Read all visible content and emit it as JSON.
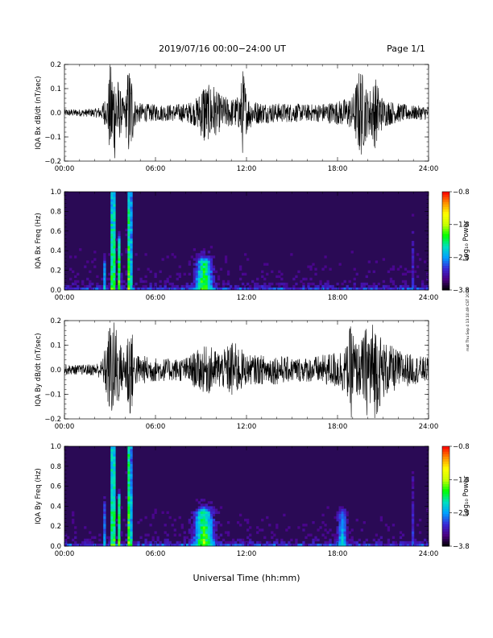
{
  "header": {
    "title": "2019/07/16  00:00−24:00 UT",
    "page": "Page 1/1"
  },
  "footer": {
    "xlabel": "Universal Time (hh:mm)",
    "side_note": "mat Thu Sep 4 13:10:49 CST 2019"
  },
  "colors": {
    "trace": "#000000",
    "spectrogram_background": "#2a0a55",
    "colormap": [
      "#000000",
      "#4b0082",
      "#3a2ad8",
      "#00a0ff",
      "#00e0c0",
      "#00ff00",
      "#c8ff00",
      "#ffff00",
      "#ff9000",
      "#ff0000"
    ]
  },
  "chart_data": [
    {
      "type": "line",
      "ylabel": "IQA Bx dB/dt (nT/sec)",
      "xlim": [
        0,
        24
      ],
      "ylim": [
        -0.2,
        0.2
      ],
      "xticks": [
        0,
        6,
        12,
        18,
        24
      ],
      "xtick_labels": [
        "00:00",
        "06:00",
        "12:00",
        "18:00",
        "24:00"
      ],
      "yticks": [
        -0.2,
        -0.1,
        0.0,
        0.1,
        0.2
      ],
      "ytick_labels": [
        "−0.2",
        "−0.1",
        "0.0",
        "0.1",
        "0.2"
      ],
      "series": [
        {
          "x": [
            0,
            1,
            2,
            2.5,
            2.6,
            2.75,
            3.0,
            3.2,
            3.4,
            3.6,
            3.8,
            4.0,
            4.2,
            4.4,
            4.6,
            5.0,
            6.0,
            7.0,
            8.0,
            8.5,
            8.8,
            9.0,
            9.2,
            9.4,
            9.6,
            9.8,
            10.0,
            10.5,
            11.0,
            11.5,
            11.8,
            12.0,
            12.5,
            13.0,
            14.0,
            15.0,
            16.0,
            17.0,
            18.0,
            19.0,
            19.5,
            20.0,
            20.5,
            21.0,
            22.0,
            23.0,
            24.0
          ],
          "envelope": [
            0.015,
            0.015,
            0.018,
            0.03,
            0.08,
            0.03,
            0.2,
            0.2,
            0.2,
            0.12,
            0.07,
            0.05,
            0.2,
            0.2,
            0.06,
            0.04,
            0.035,
            0.035,
            0.04,
            0.05,
            0.07,
            0.1,
            0.15,
            0.11,
            0.12,
            0.13,
            0.09,
            0.07,
            0.06,
            0.07,
            0.2,
            0.08,
            0.05,
            0.045,
            0.04,
            0.04,
            0.035,
            0.04,
            0.05,
            0.07,
            0.2,
            0.09,
            0.15,
            0.06,
            0.04,
            0.03,
            0.03
          ]
        }
      ]
    },
    {
      "type": "heatmap",
      "ylabel": "IQA Bx Freq (Hz)",
      "xlim": [
        0,
        24
      ],
      "ylim": [
        0,
        1.0
      ],
      "xticks": [
        0,
        6,
        12,
        18,
        24
      ],
      "xtick_labels": [
        "00:00",
        "06:00",
        "12:00",
        "18:00",
        "24:00"
      ],
      "yticks": [
        0.0,
        0.2,
        0.4,
        0.6,
        0.8,
        1.0
      ],
      "ytick_labels": [
        "0.0",
        "0.2",
        "0.4",
        "0.6",
        "0.8",
        "1.0"
      ],
      "colorbar": {
        "label": "Log₁₀ Power",
        "range": [
          -3.8,
          -0.8
        ],
        "ticks": [
          -3.8,
          -2.8,
          -1.8,
          -0.8
        ],
        "tick_labels": [
          "−3.8",
          "−2.8",
          "−1.8",
          "−0.8"
        ]
      },
      "features": [
        {
          "t": 2.6,
          "width": 0.06,
          "fmax": 0.3,
          "power": -2.0
        },
        {
          "t": 3.2,
          "width": 0.12,
          "fmax": 1.0,
          "power": -1.2
        },
        {
          "t": 3.6,
          "width": 0.1,
          "fmax": 0.5,
          "power": -1.8
        },
        {
          "t": 4.3,
          "width": 0.12,
          "fmax": 1.0,
          "power": -1.3
        },
        {
          "t": 9.2,
          "width": 0.5,
          "fmax": 0.3,
          "power": -1.7
        },
        {
          "t": 23.0,
          "width": 0.05,
          "fmax": 0.8,
          "power": -2.6
        }
      ]
    },
    {
      "type": "line",
      "ylabel": "IQA By dB/dt (nT/sec)",
      "xlim": [
        0,
        24
      ],
      "ylim": [
        -0.2,
        0.2
      ],
      "xticks": [
        0,
        6,
        12,
        18,
        24
      ],
      "xtick_labels": [
        "00:00",
        "06:00",
        "12:00",
        "18:00",
        "24:00"
      ],
      "yticks": [
        -0.2,
        -0.1,
        0.0,
        0.1,
        0.2
      ],
      "ytick_labels": [
        "−0.2",
        "−0.1",
        "0.0",
        "0.1",
        "0.2"
      ],
      "series": [
        {
          "x": [
            0,
            1,
            2,
            2.5,
            2.7,
            3.0,
            3.2,
            3.4,
            3.6,
            3.8,
            4.0,
            4.2,
            4.4,
            4.6,
            5.0,
            6.0,
            7.0,
            8.0,
            8.5,
            9.0,
            9.5,
            10.0,
            10.5,
            11.0,
            11.5,
            12.0,
            13.0,
            14.0,
            15.0,
            16.0,
            17.0,
            17.5,
            18.0,
            18.3,
            18.6,
            18.9,
            19.2,
            19.5,
            20.0,
            20.5,
            21.0,
            22.0,
            23.0,
            24.0
          ],
          "envelope": [
            0.02,
            0.02,
            0.025,
            0.04,
            0.1,
            0.2,
            0.2,
            0.2,
            0.13,
            0.09,
            0.08,
            0.2,
            0.2,
            0.07,
            0.06,
            0.05,
            0.045,
            0.05,
            0.07,
            0.09,
            0.1,
            0.08,
            0.08,
            0.12,
            0.1,
            0.06,
            0.06,
            0.06,
            0.05,
            0.05,
            0.06,
            0.07,
            0.08,
            0.09,
            0.1,
            0.2,
            0.12,
            0.11,
            0.2,
            0.2,
            0.12,
            0.08,
            0.06,
            0.05
          ]
        }
      ]
    },
    {
      "type": "heatmap",
      "ylabel": "IQA By Freq (Hz)",
      "xlim": [
        0,
        24
      ],
      "ylim": [
        0,
        1.0
      ],
      "xticks": [
        0,
        6,
        12,
        18,
        24
      ],
      "xtick_labels": [
        "00:00",
        "06:00",
        "12:00",
        "18:00",
        "24:00"
      ],
      "yticks": [
        0.0,
        0.2,
        0.4,
        0.6,
        0.8,
        1.0
      ],
      "ytick_labels": [
        "0.0",
        "0.2",
        "0.4",
        "0.6",
        "0.8",
        "1.0"
      ],
      "colorbar": {
        "label": "Log₁₀ Power",
        "range": [
          -3.8,
          -0.8
        ],
        "ticks": [
          -3.8,
          -2.8,
          -1.8,
          -0.8
        ],
        "tick_labels": [
          "−3.8",
          "−2.8",
          "−1.8",
          "−0.8"
        ]
      },
      "features": [
        {
          "t": 2.6,
          "width": 0.06,
          "fmax": 0.4,
          "power": -2.0
        },
        {
          "t": 3.2,
          "width": 0.12,
          "fmax": 1.0,
          "power": -1.2
        },
        {
          "t": 3.6,
          "width": 0.1,
          "fmax": 0.5,
          "power": -1.8
        },
        {
          "t": 4.3,
          "width": 0.12,
          "fmax": 1.0,
          "power": -1.3
        },
        {
          "t": 9.2,
          "width": 0.6,
          "fmax": 0.35,
          "power": -1.7
        },
        {
          "t": 18.3,
          "width": 0.3,
          "fmax": 0.35,
          "power": -2.4
        },
        {
          "t": 23.0,
          "width": 0.05,
          "fmax": 0.8,
          "power": -2.6
        }
      ]
    }
  ]
}
